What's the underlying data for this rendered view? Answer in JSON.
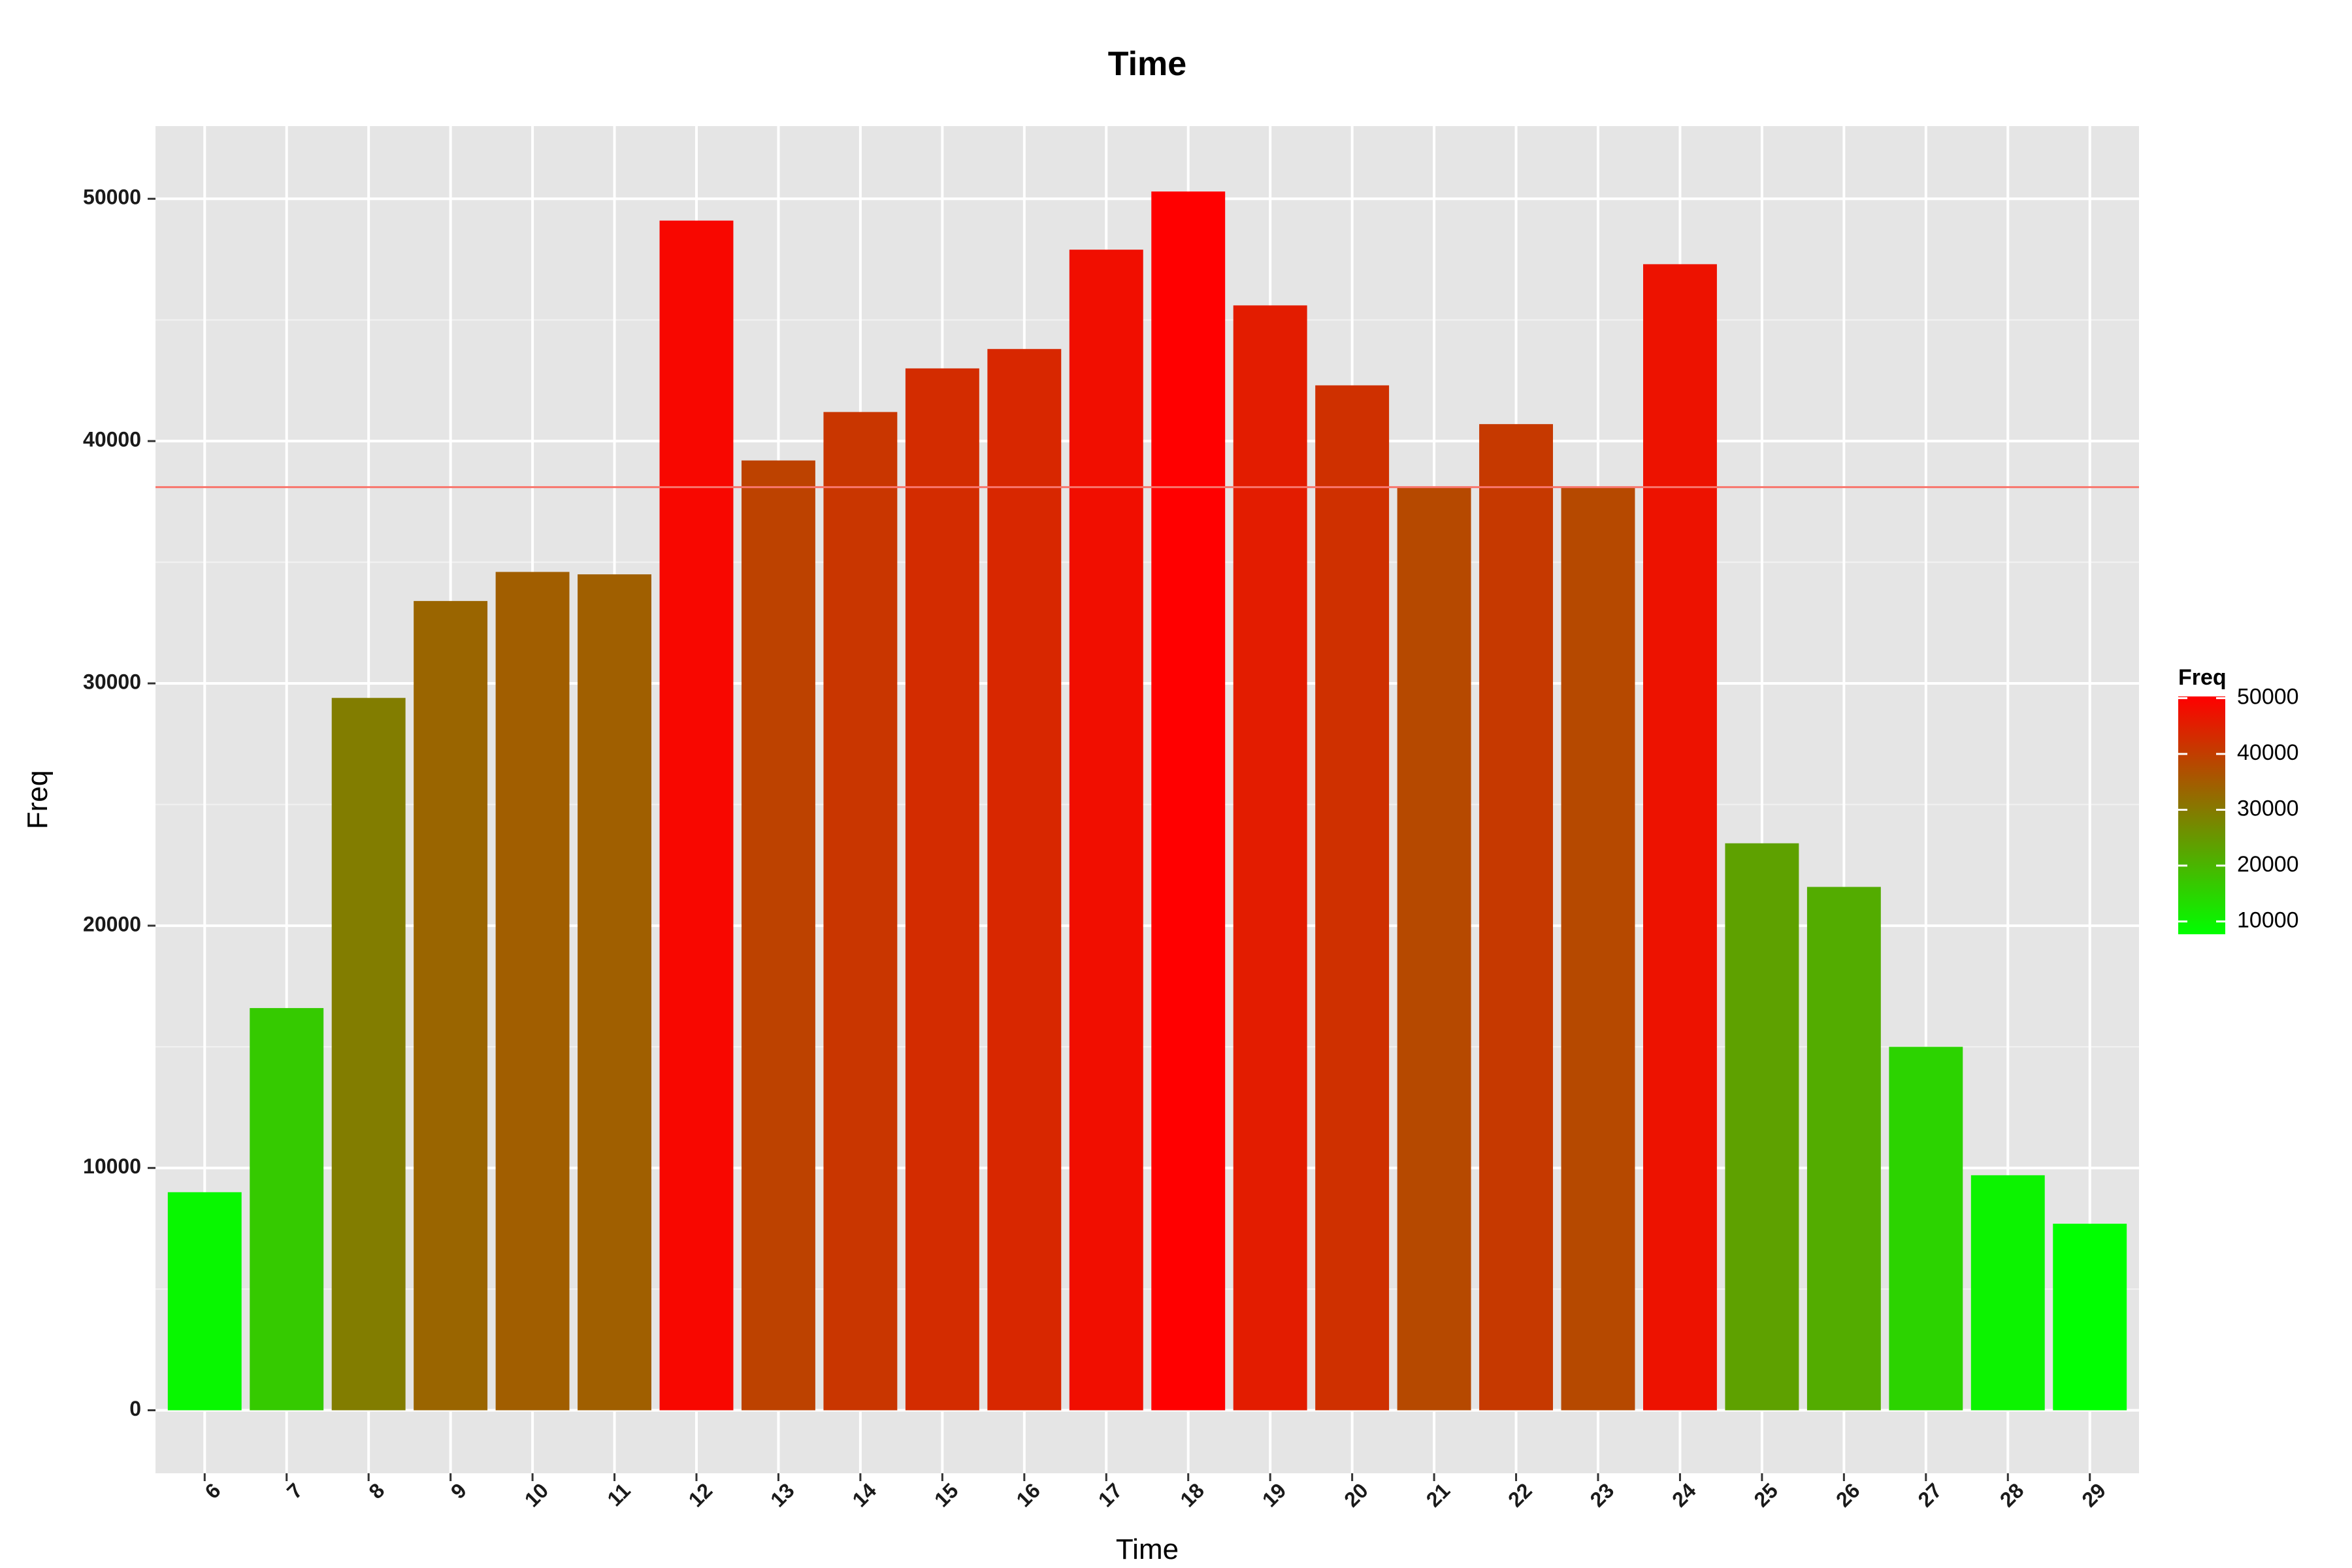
{
  "chart_data": {
    "type": "bar",
    "title": "Time",
    "xlabel": "Time",
    "ylabel": "Freq",
    "categories": [
      "6",
      "7",
      "8",
      "9",
      "10",
      "11",
      "12",
      "13",
      "14",
      "15",
      "16",
      "17",
      "18",
      "19",
      "20",
      "21",
      "22",
      "23",
      "24",
      "25",
      "26",
      "27",
      "28",
      "29"
    ],
    "values": [
      9000,
      16600,
      29400,
      33400,
      34600,
      34500,
      49100,
      39200,
      41200,
      43000,
      43800,
      47900,
      50300,
      45600,
      42300,
      38100,
      40700,
      38100,
      47300,
      23400,
      21600,
      15000,
      9700,
      7700
    ],
    "ylim": [
      -2600,
      53000
    ],
    "yticks": [
      0,
      10000,
      20000,
      30000,
      40000,
      50000
    ],
    "hline": 38100,
    "hline_color": "#f8766d",
    "grid": true,
    "panel_background": "#e5e5e5",
    "grid_color": "#ffffff",
    "legend": {
      "title": "Freq",
      "position": "right",
      "labels": [
        "50000",
        "40000",
        "30000",
        "20000",
        "10000"
      ],
      "values": [
        50000,
        40000,
        30000,
        20000,
        10000
      ],
      "range": [
        7700,
        50300
      ],
      "low_color": "#00ff00",
      "high_color": "#ff0000"
    }
  }
}
